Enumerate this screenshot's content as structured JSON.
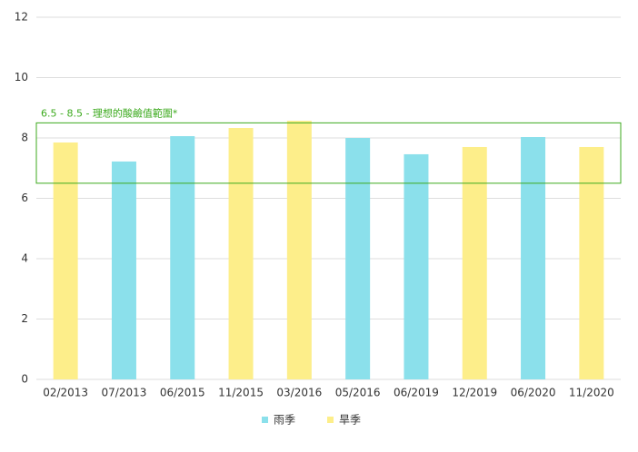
{
  "chart_data": {
    "type": "bar",
    "categories": [
      "02/2013",
      "07/2013",
      "06/2015",
      "11/2015",
      "03/2016",
      "05/2016",
      "06/2019",
      "12/2019",
      "06/2020",
      "11/2020"
    ],
    "series": [
      {
        "name": "雨季",
        "color": "#8be0eb",
        "values": [
          null,
          7.22,
          8.06,
          null,
          null,
          8.0,
          7.46,
          null,
          8.03,
          null
        ]
      },
      {
        "name": "旱季",
        "color": "#fdee8a",
        "values": [
          7.85,
          null,
          null,
          8.33,
          8.57,
          null,
          null,
          7.7,
          null,
          7.7
        ]
      }
    ],
    "band": {
      "from": 6.5,
      "to": 8.5,
      "label": "6.5 - 8.5 - 理想的酸鹼值範圍*",
      "color": "#3caa1e"
    },
    "ylim": [
      0,
      12
    ],
    "yticks": [
      0,
      2,
      4,
      6,
      8,
      10,
      12
    ],
    "grid": true,
    "legend": "bottom"
  }
}
